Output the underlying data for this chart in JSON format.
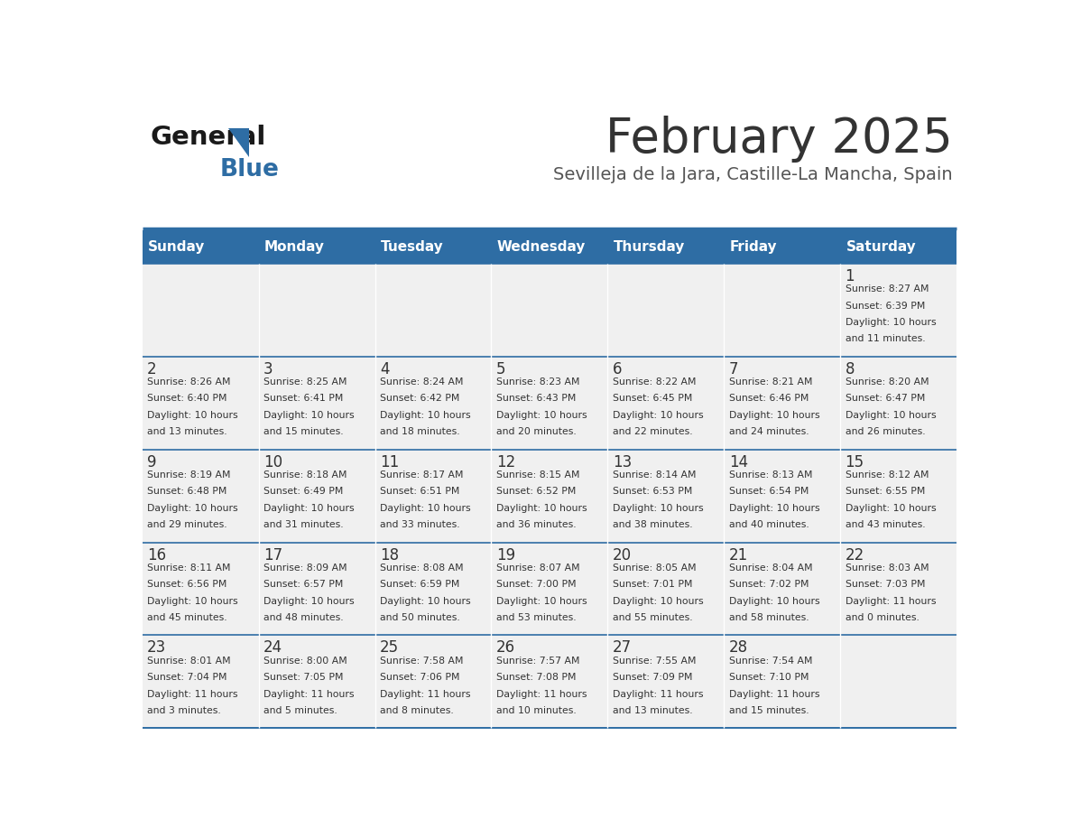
{
  "title": "February 2025",
  "subtitle": "Sevilleja de la Jara, Castille-La Mancha, Spain",
  "days_of_week": [
    "Sunday",
    "Monday",
    "Tuesday",
    "Wednesday",
    "Thursday",
    "Friday",
    "Saturday"
  ],
  "header_bg": "#2E6DA4",
  "header_text": "#FFFFFF",
  "cell_bg_light": "#F0F0F0",
  "cell_bg_white": "#FFFFFF",
  "border_color": "#2E6DA4",
  "text_color": "#333333",
  "title_color": "#333333",
  "subtitle_color": "#555555",
  "logo_general_color": "#1a1a1a",
  "logo_blue_color": "#2E6DA4",
  "weeks": [
    [
      {
        "day": "",
        "info": ""
      },
      {
        "day": "",
        "info": ""
      },
      {
        "day": "",
        "info": ""
      },
      {
        "day": "",
        "info": ""
      },
      {
        "day": "",
        "info": ""
      },
      {
        "day": "",
        "info": ""
      },
      {
        "day": "1",
        "info": "Sunrise: 8:27 AM\nSunset: 6:39 PM\nDaylight: 10 hours\nand 11 minutes."
      }
    ],
    [
      {
        "day": "2",
        "info": "Sunrise: 8:26 AM\nSunset: 6:40 PM\nDaylight: 10 hours\nand 13 minutes."
      },
      {
        "day": "3",
        "info": "Sunrise: 8:25 AM\nSunset: 6:41 PM\nDaylight: 10 hours\nand 15 minutes."
      },
      {
        "day": "4",
        "info": "Sunrise: 8:24 AM\nSunset: 6:42 PM\nDaylight: 10 hours\nand 18 minutes."
      },
      {
        "day": "5",
        "info": "Sunrise: 8:23 AM\nSunset: 6:43 PM\nDaylight: 10 hours\nand 20 minutes."
      },
      {
        "day": "6",
        "info": "Sunrise: 8:22 AM\nSunset: 6:45 PM\nDaylight: 10 hours\nand 22 minutes."
      },
      {
        "day": "7",
        "info": "Sunrise: 8:21 AM\nSunset: 6:46 PM\nDaylight: 10 hours\nand 24 minutes."
      },
      {
        "day": "8",
        "info": "Sunrise: 8:20 AM\nSunset: 6:47 PM\nDaylight: 10 hours\nand 26 minutes."
      }
    ],
    [
      {
        "day": "9",
        "info": "Sunrise: 8:19 AM\nSunset: 6:48 PM\nDaylight: 10 hours\nand 29 minutes."
      },
      {
        "day": "10",
        "info": "Sunrise: 8:18 AM\nSunset: 6:49 PM\nDaylight: 10 hours\nand 31 minutes."
      },
      {
        "day": "11",
        "info": "Sunrise: 8:17 AM\nSunset: 6:51 PM\nDaylight: 10 hours\nand 33 minutes."
      },
      {
        "day": "12",
        "info": "Sunrise: 8:15 AM\nSunset: 6:52 PM\nDaylight: 10 hours\nand 36 minutes."
      },
      {
        "day": "13",
        "info": "Sunrise: 8:14 AM\nSunset: 6:53 PM\nDaylight: 10 hours\nand 38 minutes."
      },
      {
        "day": "14",
        "info": "Sunrise: 8:13 AM\nSunset: 6:54 PM\nDaylight: 10 hours\nand 40 minutes."
      },
      {
        "day": "15",
        "info": "Sunrise: 8:12 AM\nSunset: 6:55 PM\nDaylight: 10 hours\nand 43 minutes."
      }
    ],
    [
      {
        "day": "16",
        "info": "Sunrise: 8:11 AM\nSunset: 6:56 PM\nDaylight: 10 hours\nand 45 minutes."
      },
      {
        "day": "17",
        "info": "Sunrise: 8:09 AM\nSunset: 6:57 PM\nDaylight: 10 hours\nand 48 minutes."
      },
      {
        "day": "18",
        "info": "Sunrise: 8:08 AM\nSunset: 6:59 PM\nDaylight: 10 hours\nand 50 minutes."
      },
      {
        "day": "19",
        "info": "Sunrise: 8:07 AM\nSunset: 7:00 PM\nDaylight: 10 hours\nand 53 minutes."
      },
      {
        "day": "20",
        "info": "Sunrise: 8:05 AM\nSunset: 7:01 PM\nDaylight: 10 hours\nand 55 minutes."
      },
      {
        "day": "21",
        "info": "Sunrise: 8:04 AM\nSunset: 7:02 PM\nDaylight: 10 hours\nand 58 minutes."
      },
      {
        "day": "22",
        "info": "Sunrise: 8:03 AM\nSunset: 7:03 PM\nDaylight: 11 hours\nand 0 minutes."
      }
    ],
    [
      {
        "day": "23",
        "info": "Sunrise: 8:01 AM\nSunset: 7:04 PM\nDaylight: 11 hours\nand 3 minutes."
      },
      {
        "day": "24",
        "info": "Sunrise: 8:00 AM\nSunset: 7:05 PM\nDaylight: 11 hours\nand 5 minutes."
      },
      {
        "day": "25",
        "info": "Sunrise: 7:58 AM\nSunset: 7:06 PM\nDaylight: 11 hours\nand 8 minutes."
      },
      {
        "day": "26",
        "info": "Sunrise: 7:57 AM\nSunset: 7:08 PM\nDaylight: 11 hours\nand 10 minutes."
      },
      {
        "day": "27",
        "info": "Sunrise: 7:55 AM\nSunset: 7:09 PM\nDaylight: 11 hours\nand 13 minutes."
      },
      {
        "day": "28",
        "info": "Sunrise: 7:54 AM\nSunset: 7:10 PM\nDaylight: 11 hours\nand 15 minutes."
      },
      {
        "day": "",
        "info": ""
      }
    ]
  ]
}
